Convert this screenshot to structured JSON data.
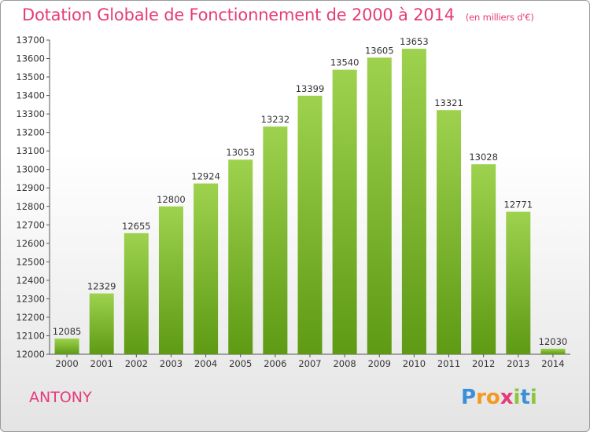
{
  "title": "Dotation Globale de Fonctionnement de 2000 à 2014",
  "subtitle": "(en milliers d'€)",
  "city": "ANTONY",
  "logo": {
    "letters": [
      "P",
      "r",
      "o",
      "x",
      "i",
      "t",
      "i"
    ],
    "colors": [
      "#3a8fd9",
      "#f39a1e",
      "#f39a1e",
      "#e63b7a",
      "#8cc63f",
      "#3a8fd9",
      "#8cc63f"
    ]
  },
  "colors": {
    "bar_top": "#9ed24e",
    "bar_bottom": "#5e9a14",
    "title": "#e63b7a"
  },
  "chart_data": {
    "type": "bar",
    "title": "Dotation Globale de Fonctionnement de 2000 à 2014",
    "subtitle": "(en milliers d'€)",
    "xlabel": "",
    "ylabel": "",
    "categories": [
      "2000",
      "2001",
      "2002",
      "2003",
      "2004",
      "2005",
      "2006",
      "2007",
      "2008",
      "2009",
      "2010",
      "2011",
      "2012",
      "2013",
      "2014"
    ],
    "values": [
      12085,
      12329,
      12655,
      12800,
      12924,
      13053,
      13232,
      13399,
      13540,
      13605,
      13653,
      13321,
      13028,
      12771,
      12030
    ],
    "ylim": [
      12000,
      13700
    ],
    "yticks": [
      12000,
      12100,
      12200,
      12300,
      12400,
      12500,
      12600,
      12700,
      12800,
      12900,
      13000,
      13100,
      13200,
      13300,
      13400,
      13500,
      13600,
      13700
    ],
    "grid": false,
    "legend": "none"
  }
}
